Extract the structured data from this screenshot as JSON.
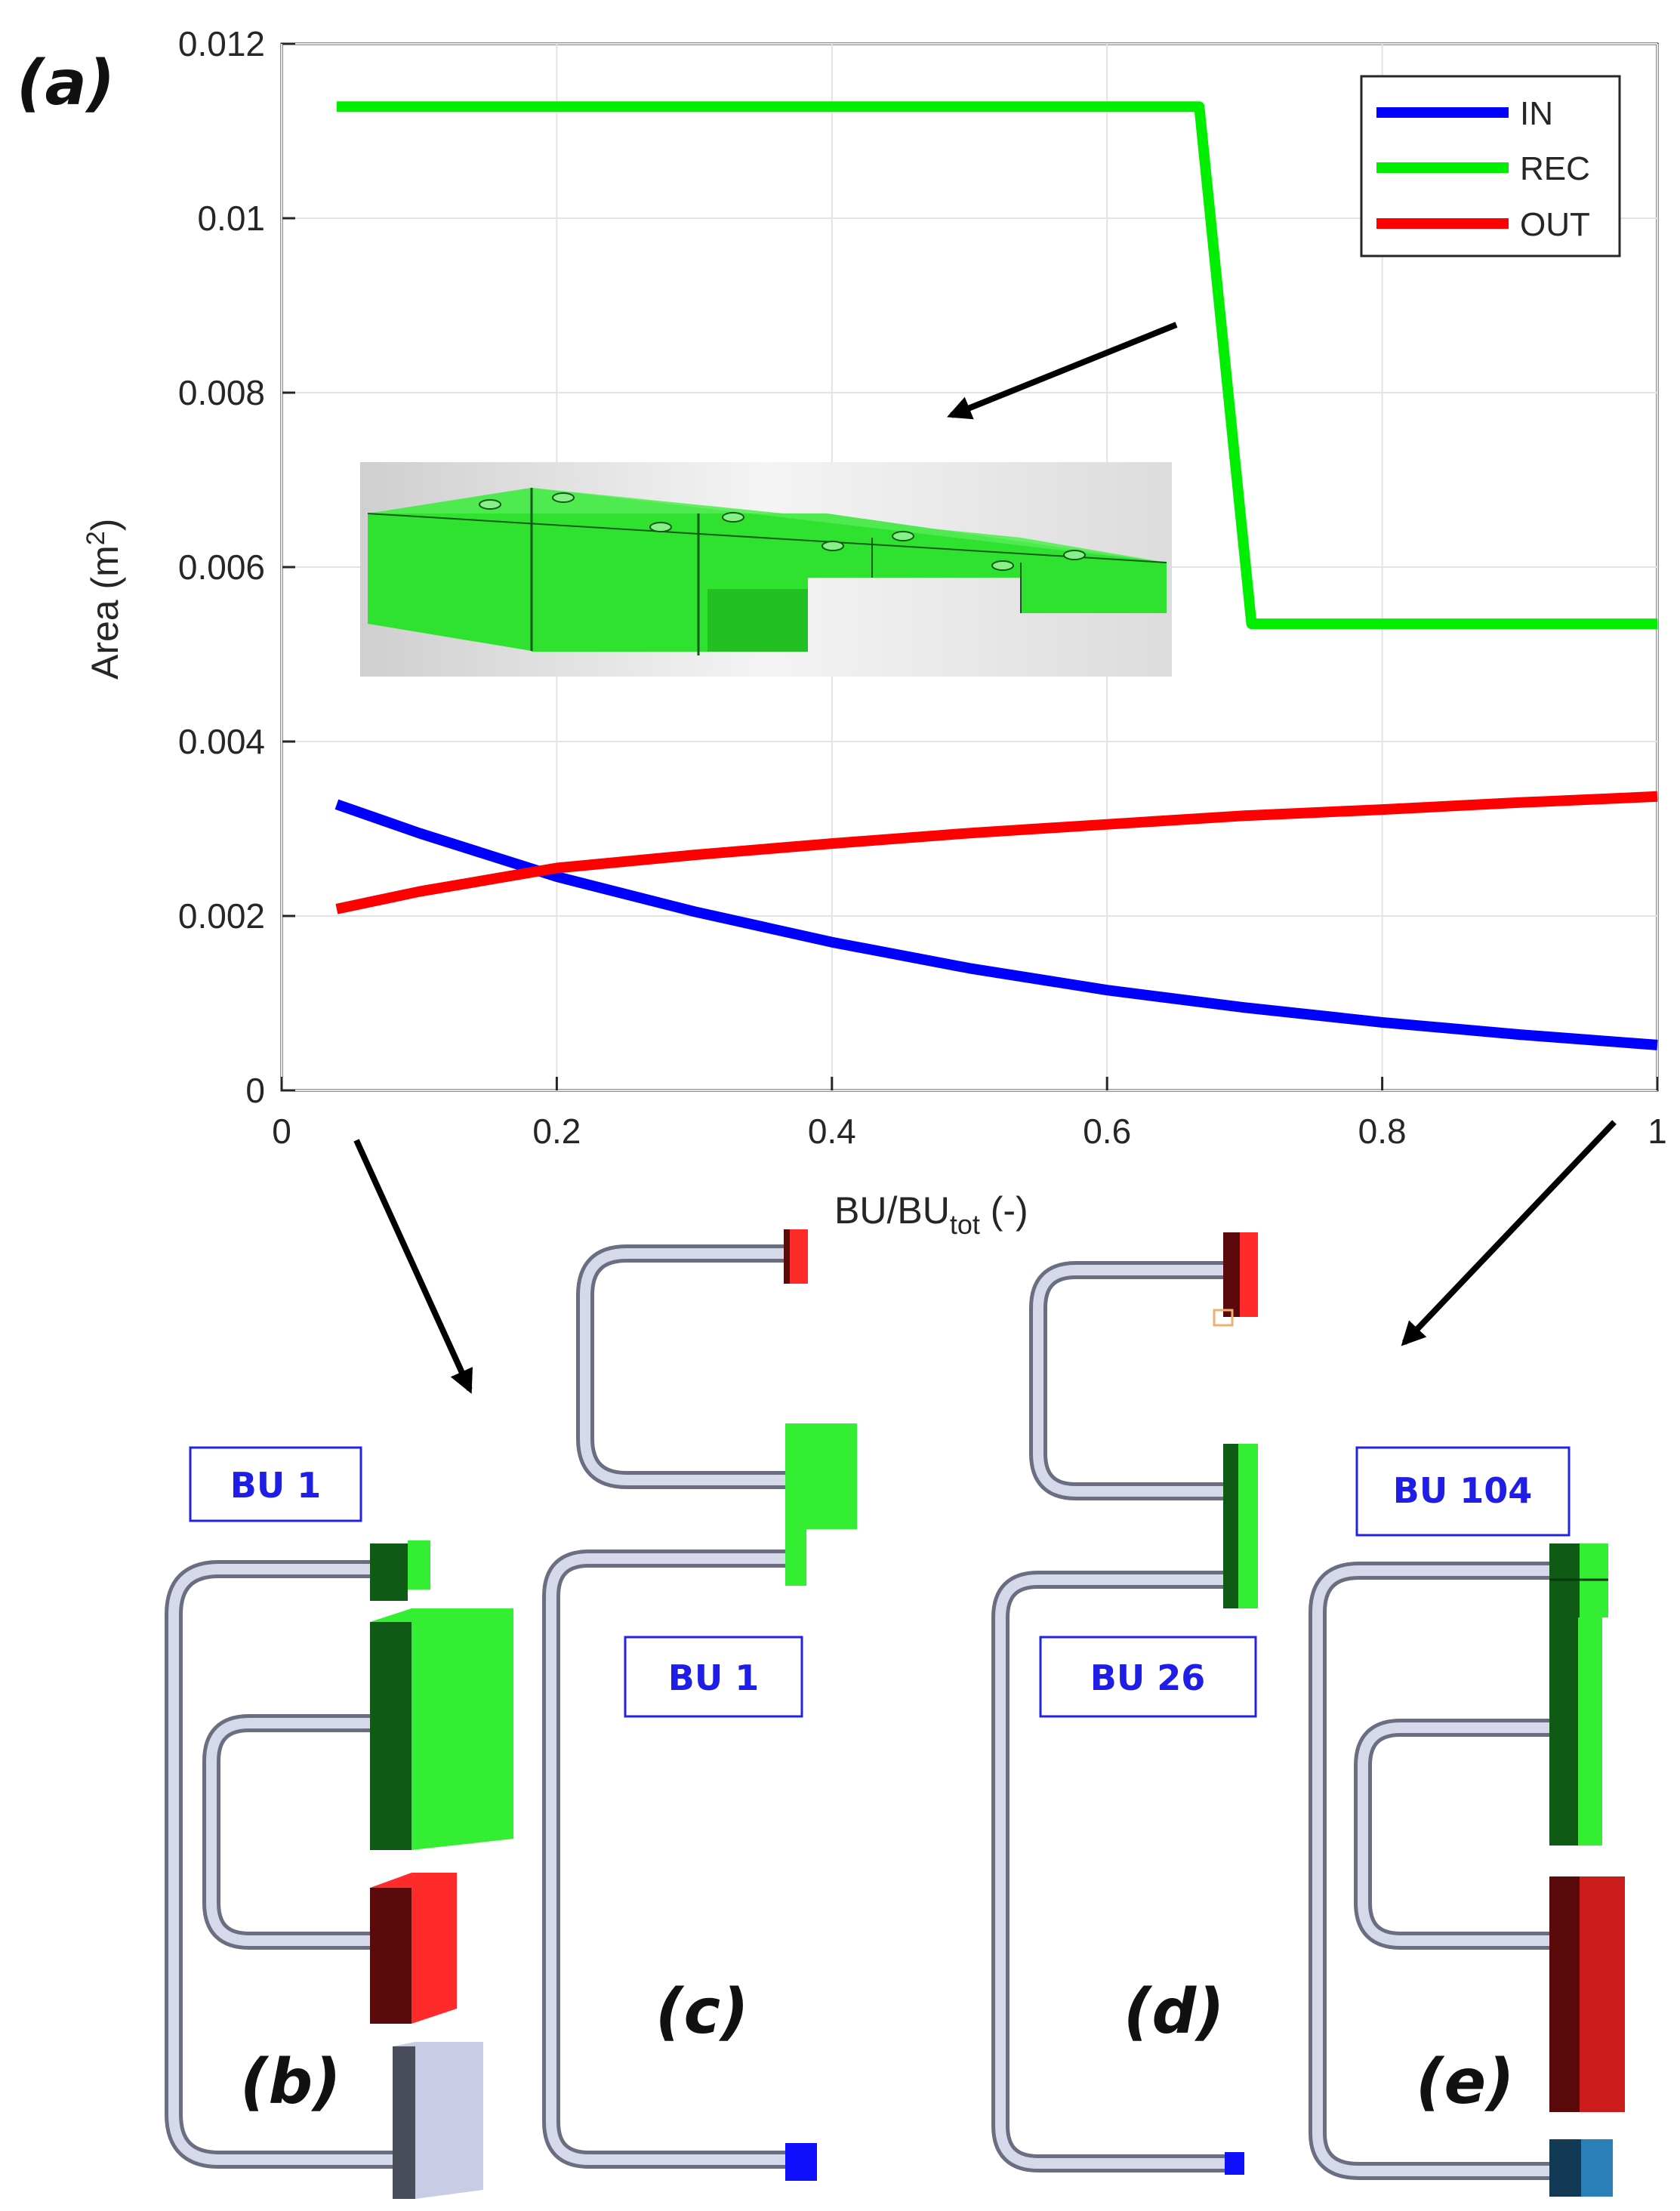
{
  "chart_data": {
    "type": "line",
    "title": "",
    "panel_label": "(a)",
    "xlabel": "BU/BU",
    "xlabel_sub": "tot",
    "xlabel_unit": " (-)",
    "ylabel": "Area (m",
    "ylabel_sup": "2",
    "ylabel_close": ")",
    "xlim": [
      0,
      1
    ],
    "ylim": [
      0,
      0.012
    ],
    "xticks": [
      "0",
      "0.2",
      "0.4",
      "0.6",
      "0.8",
      "1"
    ],
    "yticks": [
      "0",
      "0.002",
      "0.004",
      "0.006",
      "0.008",
      "0.01",
      "0.012"
    ],
    "grid": true,
    "legend_position": "top-right",
    "series": [
      {
        "name": "IN",
        "color": "#0000ff",
        "x": [
          0.04,
          0.1,
          0.2,
          0.3,
          0.4,
          0.5,
          0.6,
          0.7,
          0.8,
          0.9,
          1.0
        ],
        "y": [
          0.00328,
          0.00295,
          0.00245,
          0.00205,
          0.0017,
          0.0014,
          0.00115,
          0.00095,
          0.00078,
          0.00064,
          0.00052
        ]
      },
      {
        "name": "REC",
        "color": "#00ee00",
        "x": [
          0.04,
          0.667,
          0.705,
          1.0
        ],
        "y": [
          0.01128,
          0.01128,
          0.00535,
          0.00535
        ]
      },
      {
        "name": "OUT",
        "color": "#ff0000",
        "x": [
          0.04,
          0.1,
          0.2,
          0.3,
          0.4,
          0.5,
          0.6,
          0.7,
          0.8,
          0.9,
          1.0
        ],
        "y": [
          0.00208,
          0.00228,
          0.00255,
          0.0027,
          0.00283,
          0.00295,
          0.00305,
          0.00315,
          0.00322,
          0.0033,
          0.00337
        ]
      }
    ]
  },
  "panels": [
    {
      "label": "(b)",
      "bu": "BU 1"
    },
    {
      "label": "(c)",
      "bu": "BU 1"
    },
    {
      "label": "(d)",
      "bu": "BU 26"
    },
    {
      "label": "(e)",
      "bu": "BU 104"
    }
  ],
  "colors": {
    "rec_light": "#33ee33",
    "rec_dark": "#0f5a14",
    "out_light": "#ff2a2a",
    "out_dark": "#5a0a0a",
    "in_blue": "#1010ff",
    "in_grey": "#c9cce6",
    "in_teal": "#2a7fb8"
  }
}
